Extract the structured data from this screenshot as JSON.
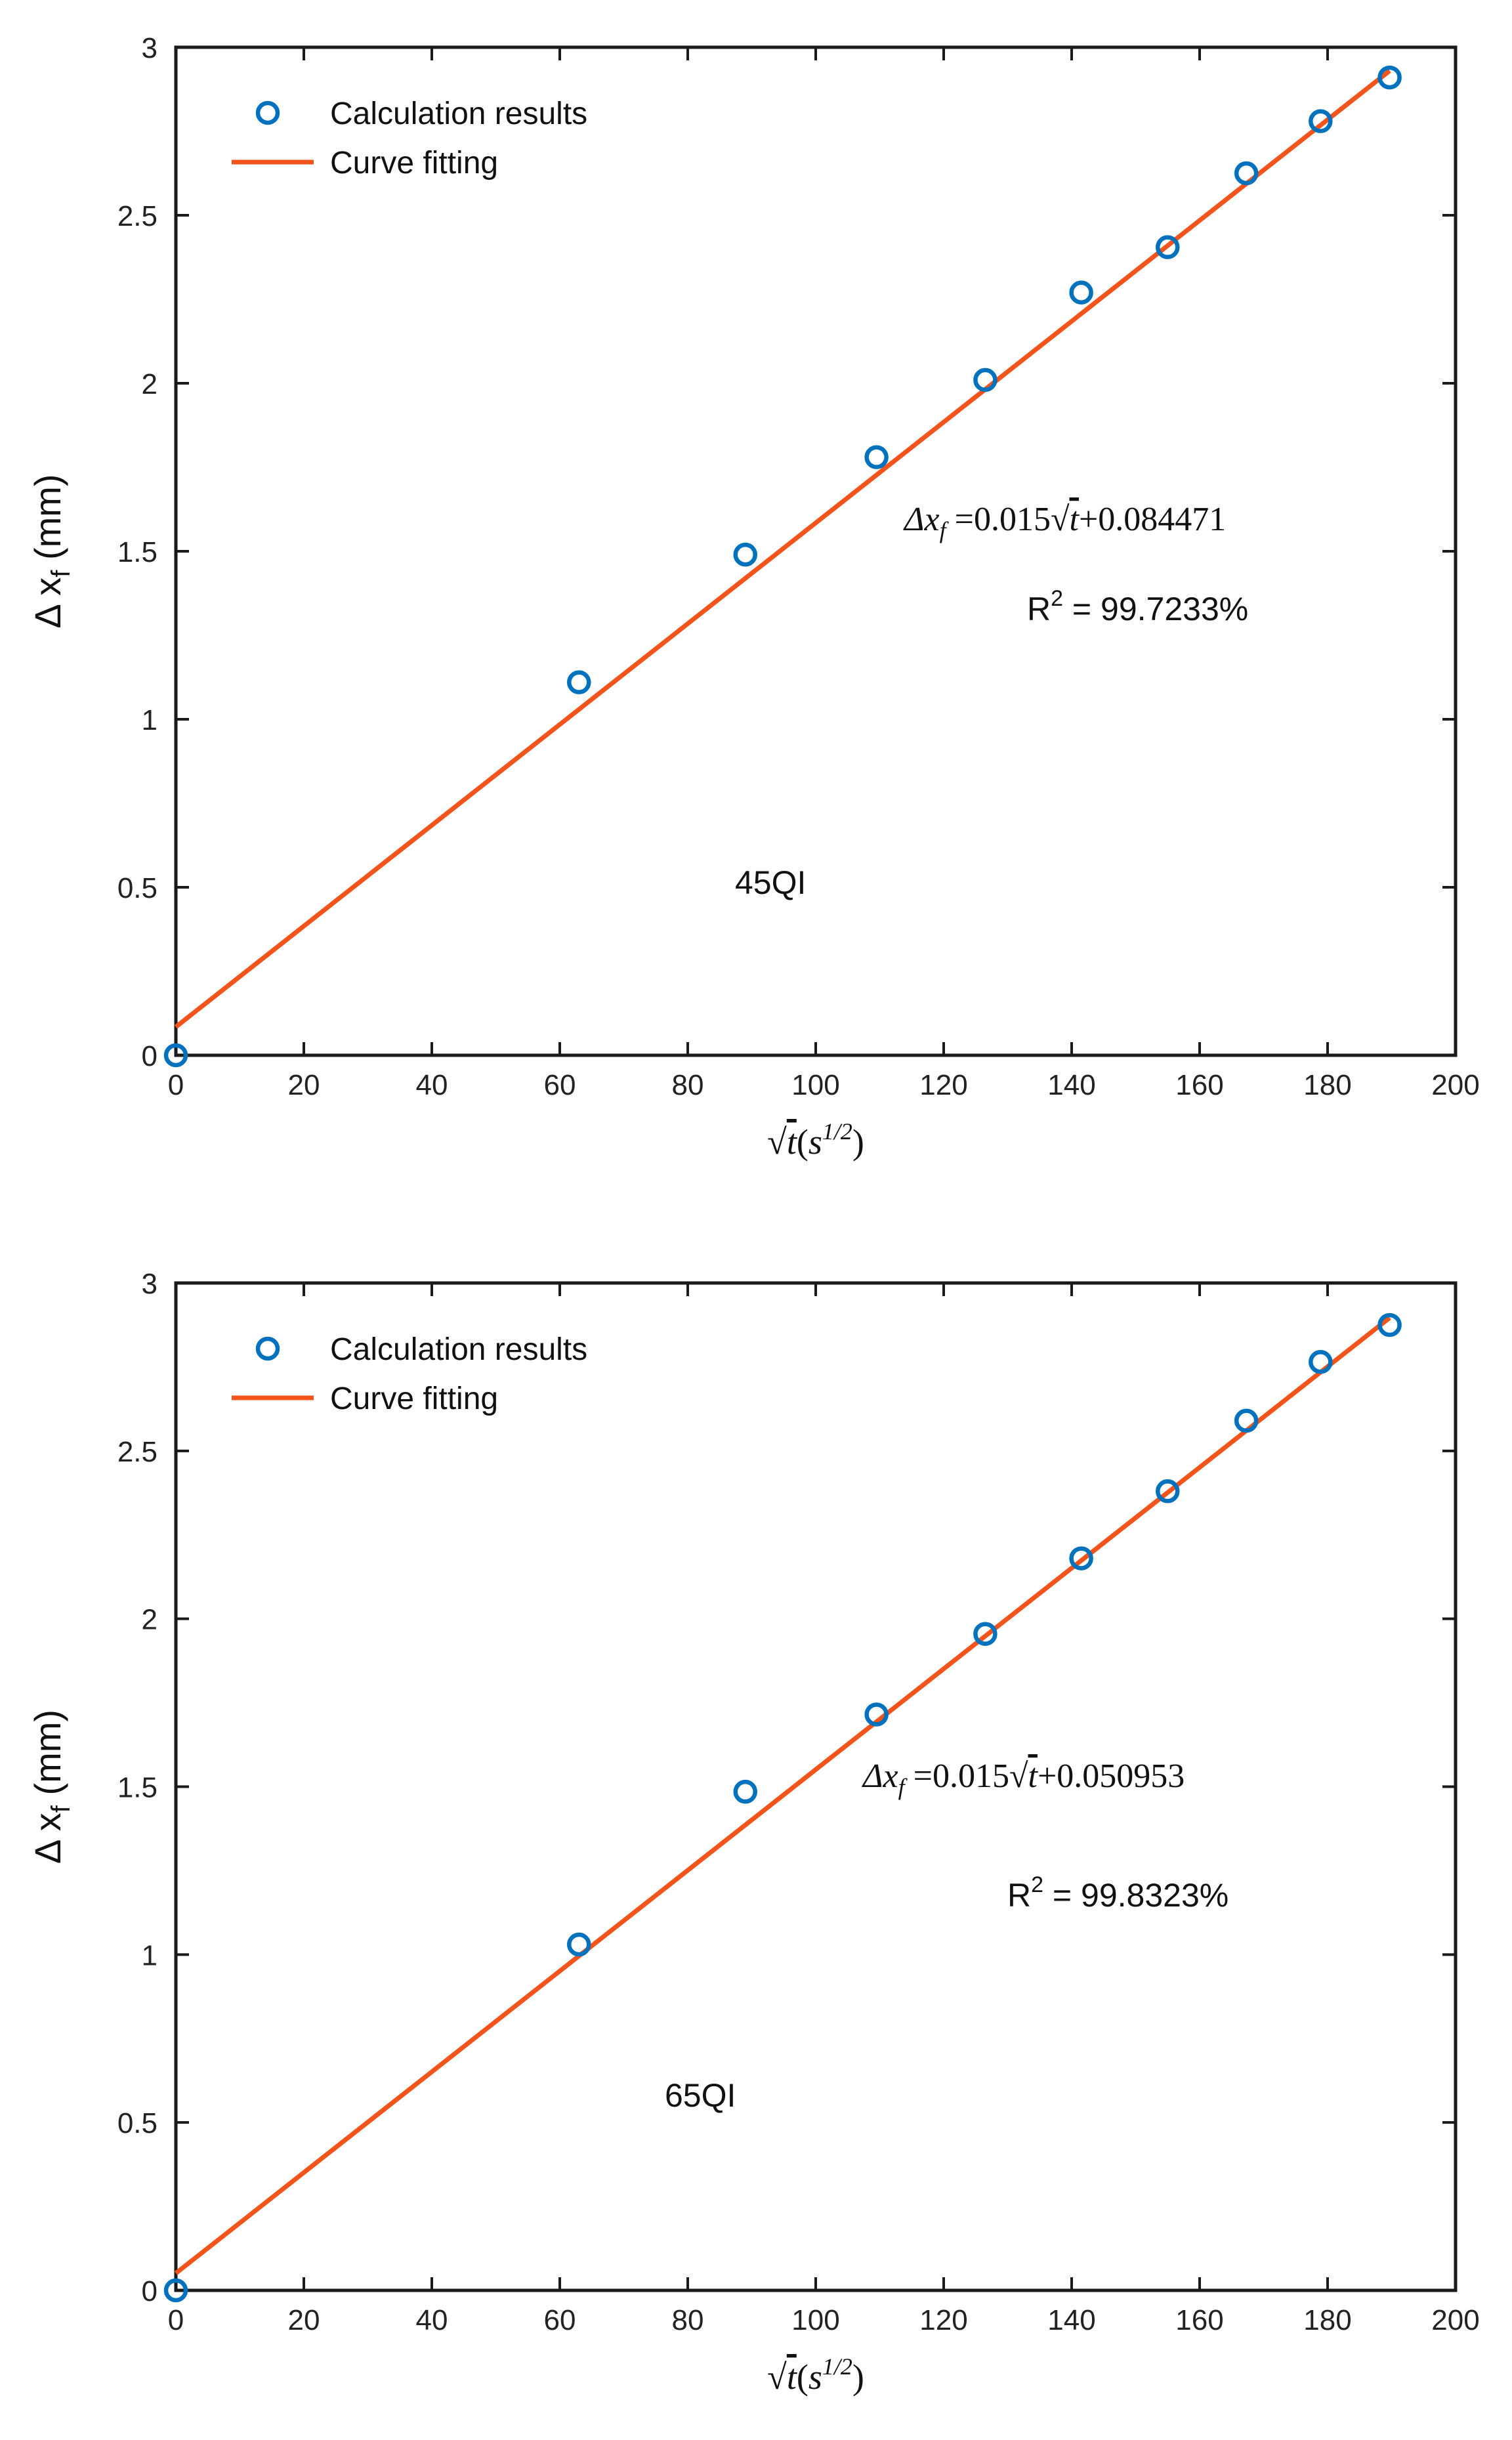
{
  "chart_data": [
    {
      "type": "scatter",
      "panel_label": "45QI",
      "xlabel": "√t(s^1/2)",
      "ylabel": "Δ x_f (mm)",
      "xlim": [
        0,
        200
      ],
      "ylim": [
        0,
        3
      ],
      "xticks": [
        "0",
        "20",
        "40",
        "60",
        "80",
        "100",
        "120",
        "140",
        "160",
        "180",
        "200"
      ],
      "yticks": [
        "0",
        "0.5",
        "1",
        "1.5",
        "2",
        "2.5",
        "3"
      ],
      "legend": {
        "scatter_label": "Calculation results",
        "line_label": "Curve fitting",
        "placement": "top-left"
      },
      "equation": {
        "lhs": "Δx",
        "sub": "f",
        "rhs_a": " =0.015",
        "sqrt_var": "t",
        "rhs_b": "+0.084471"
      },
      "r2": {
        "prefix": "R",
        "sup": "2",
        "value": " = 99.7233%"
      },
      "series": [
        {
          "name": "Calculation results",
          "x": [
            0,
            63,
            89,
            109.5,
            126.5,
            141.5,
            155,
            167.3,
            178.9,
            189.7
          ],
          "y": [
            0.0,
            1.11,
            1.49,
            1.78,
            2.01,
            2.27,
            2.405,
            2.625,
            2.78,
            2.91
          ]
        },
        {
          "name": "Curve fitting",
          "slope": 0.015,
          "intercept": 0.084471,
          "x_range": [
            0,
            189.7
          ]
        }
      ],
      "colors": {
        "scatter": "#0072BD",
        "line": "#F2541B"
      }
    },
    {
      "type": "scatter",
      "panel_label": "65QI",
      "xlabel": "√t(s^1/2)",
      "ylabel": "Δ x_f (mm)",
      "xlim": [
        0,
        200
      ],
      "ylim": [
        0,
        3
      ],
      "xticks": [
        "0",
        "20",
        "40",
        "60",
        "80",
        "100",
        "120",
        "140",
        "160",
        "180",
        "200"
      ],
      "yticks": [
        "0",
        "0.5",
        "1",
        "1.5",
        "2",
        "2.5",
        "3"
      ],
      "legend": {
        "scatter_label": "Calculation results",
        "line_label": "Curve fitting",
        "placement": "top-left"
      },
      "equation": {
        "lhs": "Δx",
        "sub": "f",
        "rhs_a": " =0.015",
        "sqrt_var": "t",
        "rhs_b": "+0.050953"
      },
      "r2": {
        "prefix": "R",
        "sup": "2",
        "value": " = 99.8323%"
      },
      "series": [
        {
          "name": "Calculation results",
          "x": [
            0,
            63,
            89,
            109.5,
            126.5,
            141.5,
            155,
            167.3,
            178.9,
            189.7
          ],
          "y": [
            0.0,
            1.03,
            1.485,
            1.715,
            1.955,
            2.18,
            2.38,
            2.59,
            2.765,
            2.875
          ]
        },
        {
          "name": "Curve fitting",
          "slope": 0.015,
          "intercept": 0.050953,
          "x_range": [
            0,
            189.7
          ]
        }
      ],
      "colors": {
        "scatter": "#0072BD",
        "line": "#F2541B"
      }
    }
  ]
}
